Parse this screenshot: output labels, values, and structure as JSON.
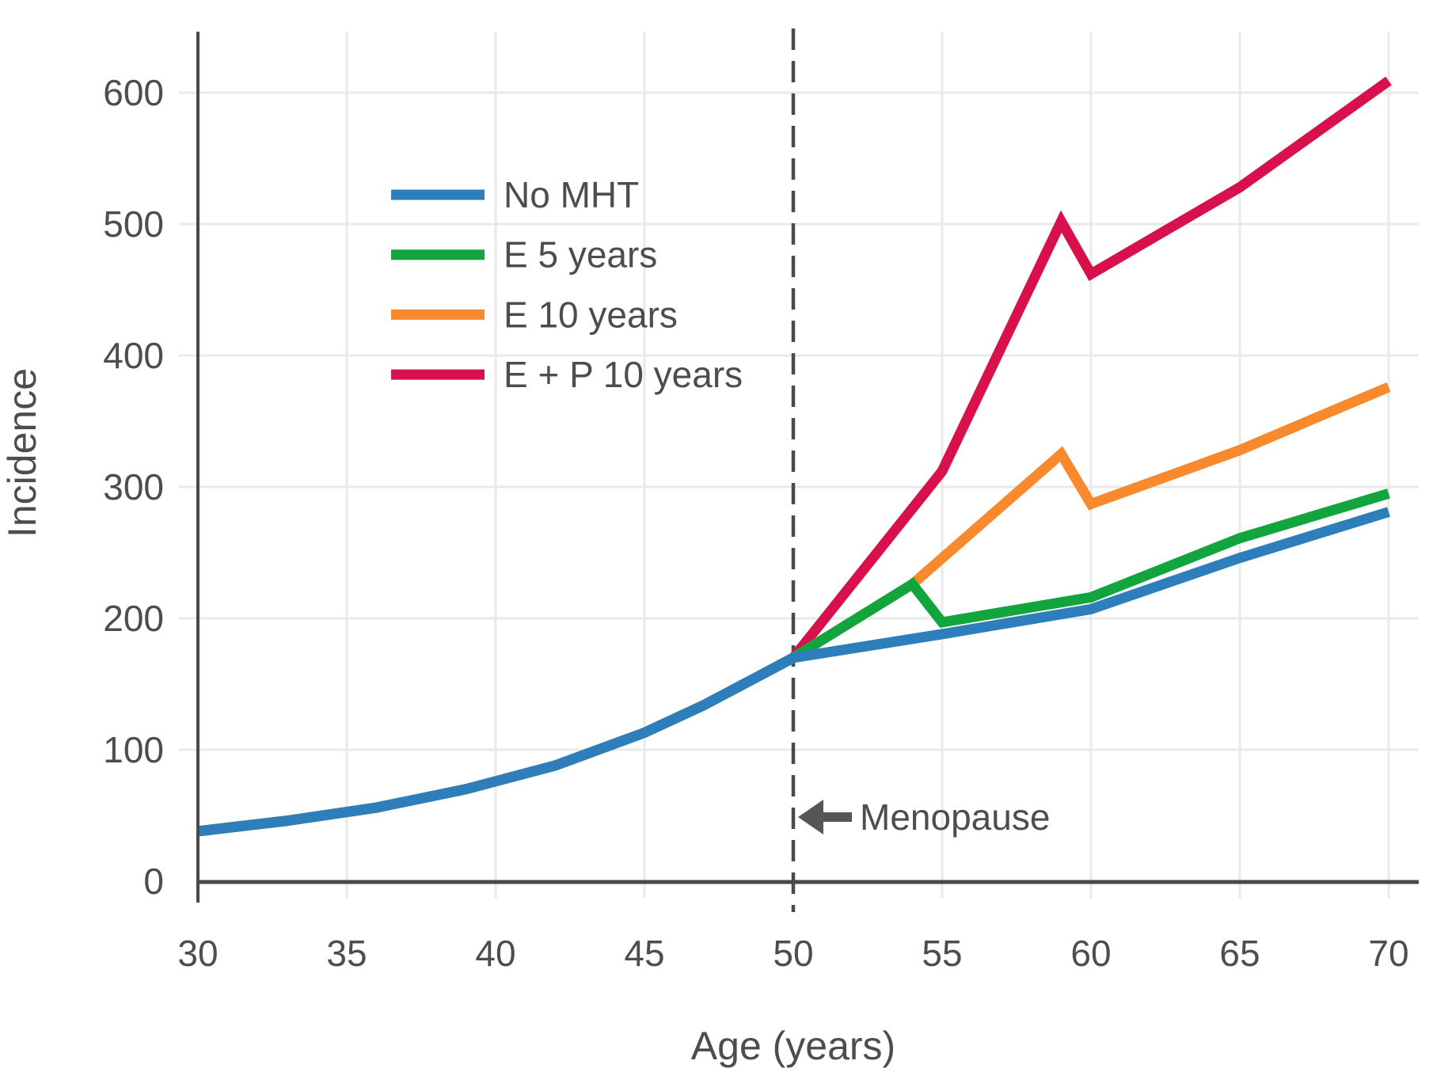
{
  "chart_data": {
    "type": "line",
    "title": "",
    "xlabel": "Age (years)",
    "ylabel": "Incidence",
    "xlim": [
      30,
      70
    ],
    "ylim": [
      0,
      646
    ],
    "x_ticks": [
      30,
      35,
      40,
      45,
      50,
      55,
      60,
      65,
      70
    ],
    "y_ticks": [
      0,
      100,
      200,
      300,
      400,
      500,
      600
    ],
    "grid": true,
    "legend_position": "upper-left-inside",
    "series": [
      {
        "name": "No MHT",
        "color": "#2e7ebc",
        "points": [
          [
            30,
            38
          ],
          [
            33,
            46
          ],
          [
            36,
            56
          ],
          [
            39,
            70
          ],
          [
            42,
            88
          ],
          [
            45,
            113
          ],
          [
            47,
            134
          ],
          [
            49,
            158
          ],
          [
            50,
            170
          ],
          [
            55,
            188
          ],
          [
            60,
            207
          ],
          [
            65,
            246
          ],
          [
            70,
            281
          ]
        ]
      },
      {
        "name": "E 5 years",
        "color": "#12a53d",
        "points": [
          [
            30,
            38
          ],
          [
            33,
            46
          ],
          [
            36,
            56
          ],
          [
            39,
            70
          ],
          [
            42,
            88
          ],
          [
            45,
            113
          ],
          [
            47,
            134
          ],
          [
            49,
            158
          ],
          [
            50,
            170
          ],
          [
            54,
            226
          ],
          [
            55,
            197
          ],
          [
            60,
            216
          ],
          [
            65,
            261
          ],
          [
            70,
            295
          ]
        ]
      },
      {
        "name": "E 10 years",
        "color": "#f8892c",
        "points": [
          [
            30,
            38
          ],
          [
            33,
            46
          ],
          [
            36,
            56
          ],
          [
            39,
            70
          ],
          [
            42,
            88
          ],
          [
            45,
            113
          ],
          [
            47,
            134
          ],
          [
            49,
            158
          ],
          [
            50,
            170
          ],
          [
            54,
            226
          ],
          [
            59,
            325
          ],
          [
            60,
            287
          ],
          [
            65,
            328
          ],
          [
            70,
            376
          ]
        ]
      },
      {
        "name": "E + P 10 years",
        "color": "#d8114d",
        "points": [
          [
            30,
            38
          ],
          [
            33,
            46
          ],
          [
            36,
            56
          ],
          [
            39,
            70
          ],
          [
            42,
            88
          ],
          [
            45,
            113
          ],
          [
            47,
            134
          ],
          [
            49,
            158
          ],
          [
            50,
            170
          ],
          [
            55,
            312
          ],
          [
            59,
            502
          ],
          [
            60,
            462
          ],
          [
            65,
            528
          ],
          [
            70,
            609
          ]
        ]
      }
    ],
    "annotations": {
      "menopause_line_x": 50,
      "menopause_label": "Menopause"
    }
  },
  "colors": {
    "grid": "#e9e9e9",
    "spine": "#494949",
    "dashed_line": "#4a4a4a",
    "text": "#4d4d4d",
    "arrow": "#565656",
    "background": "#ffffff"
  }
}
